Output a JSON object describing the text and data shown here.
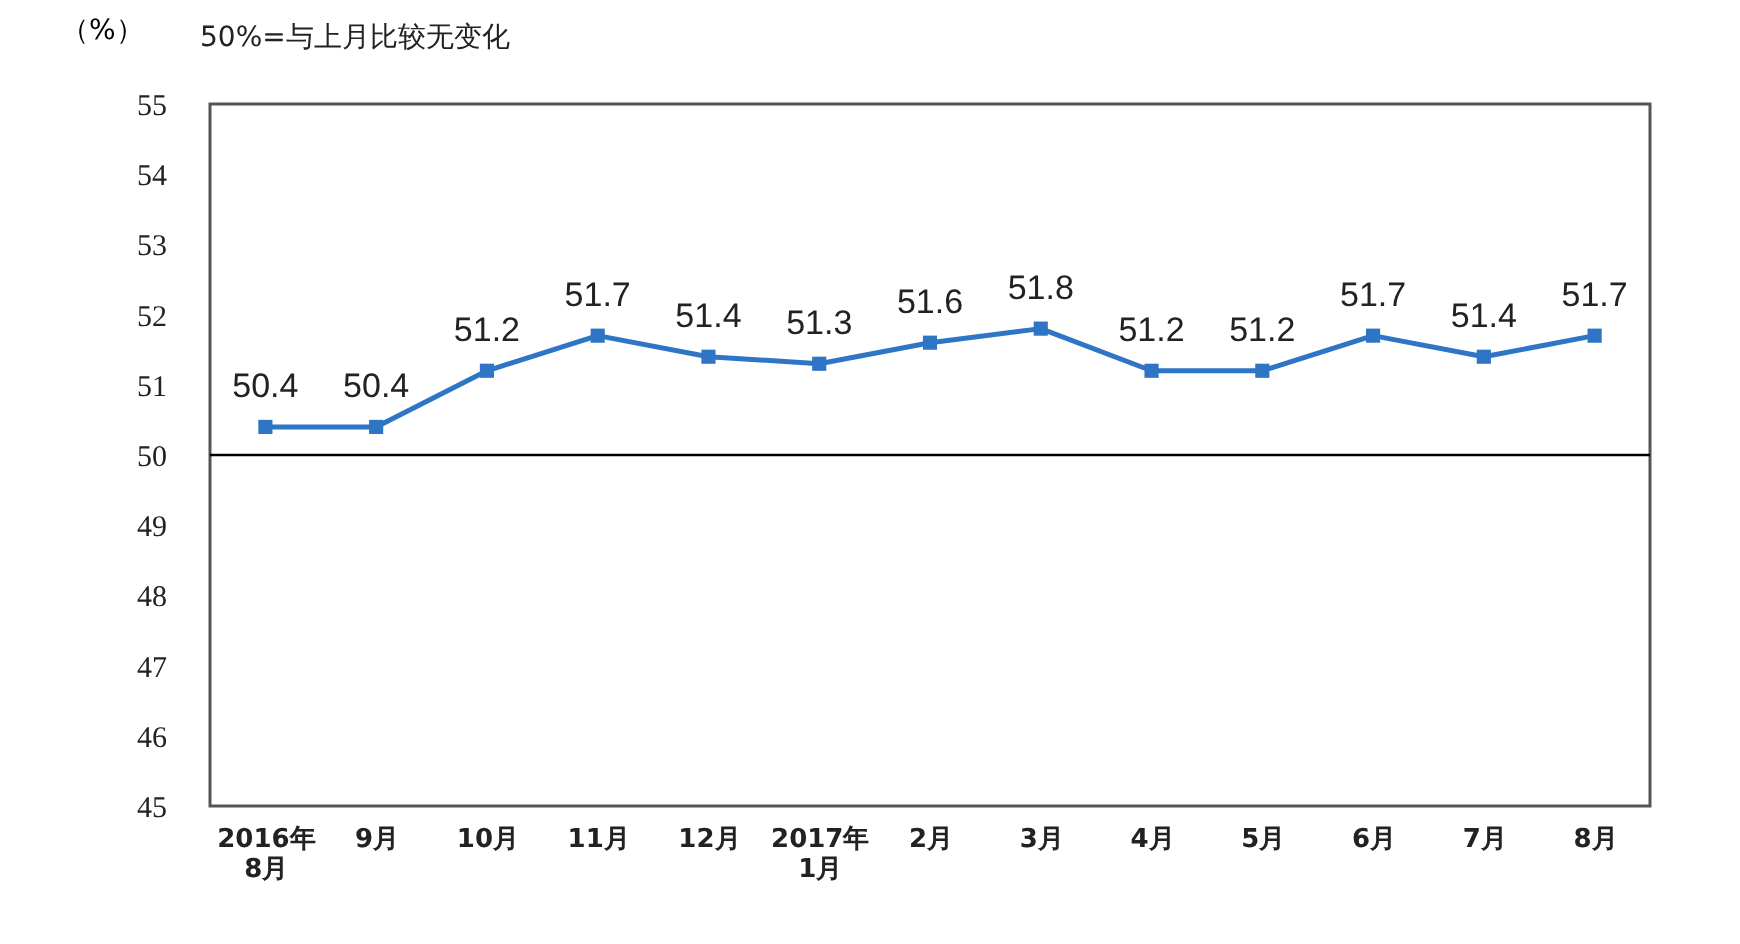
{
  "chart_data": {
    "type": "line",
    "ylabel": "（%）",
    "annotations": [
      "50%=与上月比较无变化"
    ],
    "categories": [
      "2016年\n8月",
      "9月",
      "10月",
      "11月",
      "12月",
      "2017年\n1月",
      "2月",
      "3月",
      "4月",
      "5月",
      "6月",
      "7月",
      "8月"
    ],
    "series": [
      {
        "color": "#2e75c6",
        "values": [
          50.4,
          50.4,
          51.2,
          51.7,
          51.4,
          51.3,
          51.6,
          51.8,
          51.2,
          51.2,
          51.7,
          51.4,
          51.7
        ]
      }
    ],
    "ylim": [
      45,
      55
    ],
    "yticks": [
      45,
      46,
      47,
      48,
      49,
      50,
      51,
      52,
      53,
      54,
      55
    ],
    "grid": false,
    "marker": "square",
    "line_style": "solid",
    "data_labels": true,
    "ref_lines": [
      {
        "axis": "y",
        "value": 50,
        "color": "#000000"
      }
    ]
  }
}
